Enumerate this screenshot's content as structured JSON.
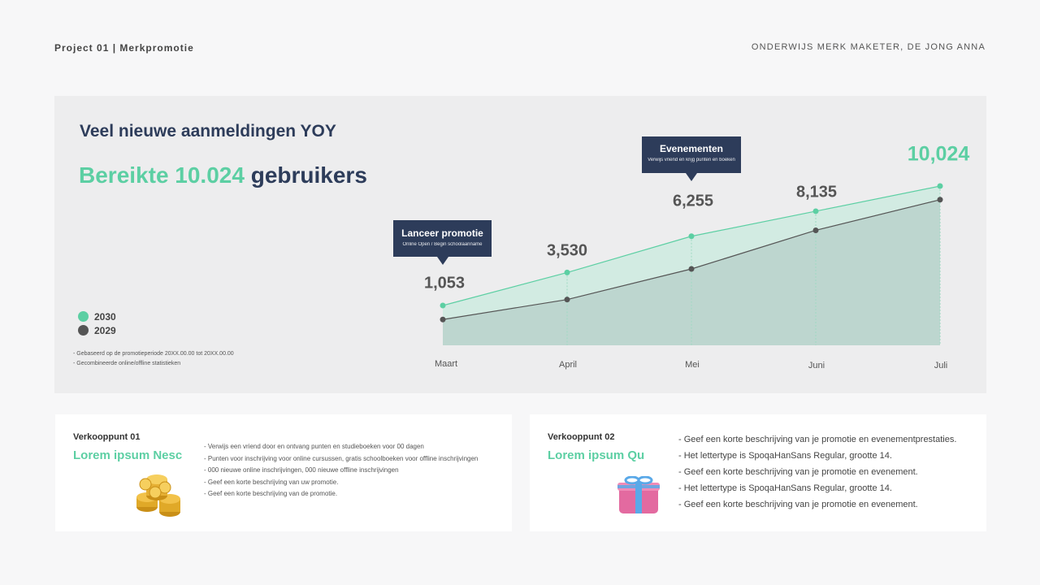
{
  "header": {
    "left": "Project 01 | Merkpromotie",
    "right": "ONDERWIJS MERK MAKETER, DE JONG ANNA"
  },
  "panel": {
    "headline": "Veel nieuwe aanmeldingen YOY",
    "big_green": "Bereikte 10.024",
    "big_dark": "gebruikers",
    "notes": [
      "- Gebaseerd op de promotieperiode 20XX.00.00 tot 20XX.00.00",
      "- Gecombineerde online/offline statistieken"
    ]
  },
  "callouts": {
    "launch": {
      "title": "Lanceer promotie",
      "sub": "Online Open / Begin schoolaanname"
    },
    "events": {
      "title": "Evenementen",
      "sub": "Verwijs vriend en krijg punten en boeken"
    }
  },
  "chart_data": {
    "type": "area",
    "categories": [
      "Maart",
      "April",
      "Mei",
      "Juni",
      "Juli"
    ],
    "series": [
      {
        "name": "2030",
        "color": "#5ccfa3",
        "values": [
          1053,
          3530,
          6255,
          8135,
          10024
        ],
        "labels": [
          "1,053",
          "3,530",
          "6,255",
          "8,135",
          "10,024"
        ]
      },
      {
        "name": "2029",
        "color": "#555555",
        "values": [
          0,
          1500,
          3800,
          6700,
          9000
        ]
      }
    ],
    "grid": false,
    "legend_position": "left"
  },
  "cards": [
    {
      "kicker": "Verkooppunt 01",
      "title": "Lorem ipsum Nesc",
      "icon": "coins-icon",
      "items": [
        "- Verwijs een vriend door en ontvang punten en studieboeken voor 00 dagen",
        "- Punten voor inschrijving voor online cursussen, gratis schoolboeken voor offline inschrijvingen",
        "- 000 nieuwe online inschrijvingen, 000 nieuwe offline inschrijvingen",
        "- Geef een korte beschrijving van uw promotie.",
        "- Geef een korte beschrijving van de promotie."
      ]
    },
    {
      "kicker": "Verkooppunt 02",
      "title": "Lorem ipsum Qu",
      "icon": "gift-icon",
      "items": [
        "- Geef een korte beschrijving van je promotie en evenementprestaties.",
        "- Het lettertype is SpoqaHanSans Regular, grootte 14.",
        "- Geef een korte beschrijving van je promotie en evenement.",
        "- Het lettertype is SpoqaHanSans Regular, grootte 14.",
        "- Geef een korte beschrijving van je promotie en evenement."
      ]
    }
  ]
}
